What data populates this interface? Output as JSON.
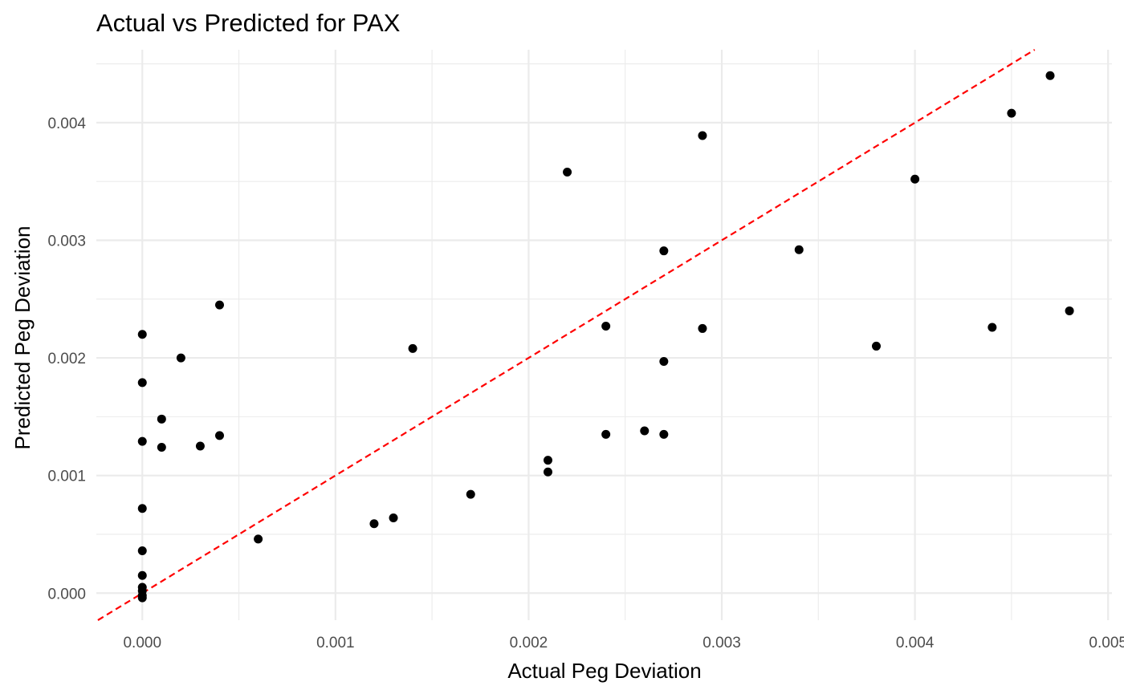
{
  "chart_data": {
    "type": "scatter",
    "title": "Actual vs Predicted for PAX",
    "xlabel": "Actual Peg Deviation",
    "ylabel": "Predicted Peg Deviation",
    "xlim": [
      -0.000238,
      0.00502
    ],
    "ylim": [
      -0.00023,
      0.00462
    ],
    "x_ticks": [
      0.0,
      0.001,
      0.002,
      0.003,
      0.004,
      0.005
    ],
    "x_tick_labels": [
      "0.000",
      "0.001",
      "0.002",
      "0.003",
      "0.004",
      "0.005"
    ],
    "y_ticks": [
      0.0,
      0.001,
      0.002,
      0.003,
      0.004
    ],
    "y_tick_labels": [
      "0.000",
      "0.001",
      "0.002",
      "0.003",
      "0.004"
    ],
    "grid": true,
    "point_color": "#000000",
    "reference_line": {
      "slope": 1,
      "intercept": 0,
      "style": "dashed",
      "color": "#ff0000"
    },
    "points": [
      {
        "x": 0.0,
        "y": 0.0022
      },
      {
        "x": 0.0,
        "y": 0.00179
      },
      {
        "x": 0.0,
        "y": 0.00129
      },
      {
        "x": 0.0,
        "y": 0.00072
      },
      {
        "x": 0.0,
        "y": 0.00036
      },
      {
        "x": 0.0,
        "y": 0.00015
      },
      {
        "x": 0.0,
        "y": 5e-05
      },
      {
        "x": 0.0,
        "y": 2e-05
      },
      {
        "x": 0.0,
        "y": -2e-05
      },
      {
        "x": 0.0,
        "y": -4e-05
      },
      {
        "x": 0.0001,
        "y": 0.00148
      },
      {
        "x": 0.0001,
        "y": 0.00124
      },
      {
        "x": 0.0002,
        "y": 0.002
      },
      {
        "x": 0.0003,
        "y": 0.00125
      },
      {
        "x": 0.0004,
        "y": 0.00245
      },
      {
        "x": 0.0004,
        "y": 0.00134
      },
      {
        "x": 0.0006,
        "y": 0.00046
      },
      {
        "x": 0.0012,
        "y": 0.00059
      },
      {
        "x": 0.0013,
        "y": 0.00064
      },
      {
        "x": 0.0014,
        "y": 0.00208
      },
      {
        "x": 0.0017,
        "y": 0.00084
      },
      {
        "x": 0.0021,
        "y": 0.00113
      },
      {
        "x": 0.0021,
        "y": 0.00103
      },
      {
        "x": 0.0022,
        "y": 0.00358
      },
      {
        "x": 0.0024,
        "y": 0.00227
      },
      {
        "x": 0.0024,
        "y": 0.00135
      },
      {
        "x": 0.0026,
        "y": 0.00138
      },
      {
        "x": 0.0027,
        "y": 0.00291
      },
      {
        "x": 0.0027,
        "y": 0.00197
      },
      {
        "x": 0.0027,
        "y": 0.00135
      },
      {
        "x": 0.0029,
        "y": 0.00389
      },
      {
        "x": 0.0029,
        "y": 0.00225
      },
      {
        "x": 0.0034,
        "y": 0.00292
      },
      {
        "x": 0.0038,
        "y": 0.0021
      },
      {
        "x": 0.004,
        "y": 0.00352
      },
      {
        "x": 0.0044,
        "y": 0.00226
      },
      {
        "x": 0.0045,
        "y": 0.00408
      },
      {
        "x": 0.0047,
        "y": 0.0044
      },
      {
        "x": 0.0048,
        "y": 0.0024
      }
    ]
  }
}
